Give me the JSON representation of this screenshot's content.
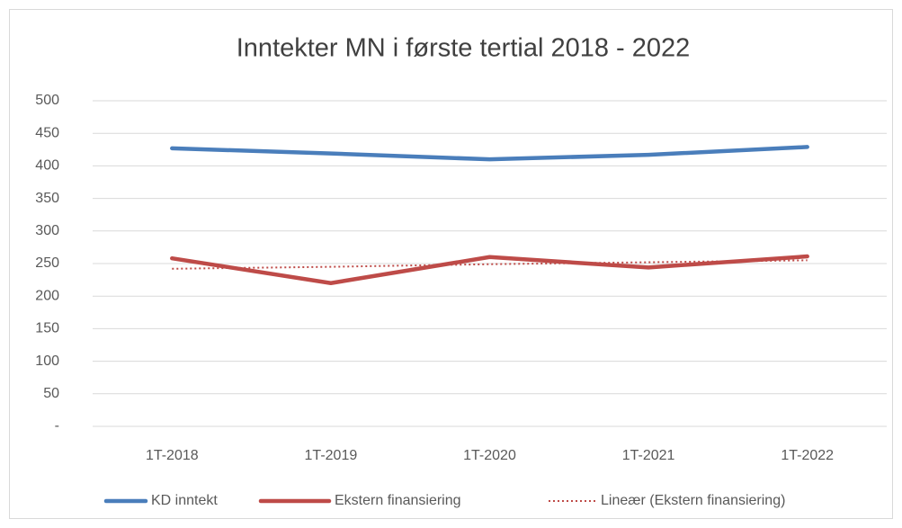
{
  "chart_data": {
    "type": "line",
    "title": "Inntekter MN i første tertial 2018 - 2022",
    "categories": [
      "1T-2018",
      "1T-2019",
      "1T-2020",
      "1T-2021",
      "1T-2022"
    ],
    "series": [
      {
        "name": "KD inntekt",
        "color": "#4a7ebb",
        "dash": "solid",
        "values": [
          427,
          419,
          410,
          417,
          429
        ]
      },
      {
        "name": "Ekstern finansiering",
        "color": "#be4b48",
        "dash": "solid",
        "values": [
          258,
          220,
          260,
          244,
          261
        ]
      },
      {
        "name": "Lineær (Ekstern finansiering)",
        "color": "#be4b48",
        "dash": "dotted",
        "values": [
          242,
          245,
          249,
          252,
          255
        ]
      }
    ],
    "ylim": [
      0,
      500
    ],
    "yticks": [
      {
        "value": 0,
        "label": "-"
      },
      50,
      100,
      150,
      200,
      250,
      300,
      350,
      400,
      450,
      500
    ],
    "grid": true,
    "legend": "bottom"
  }
}
